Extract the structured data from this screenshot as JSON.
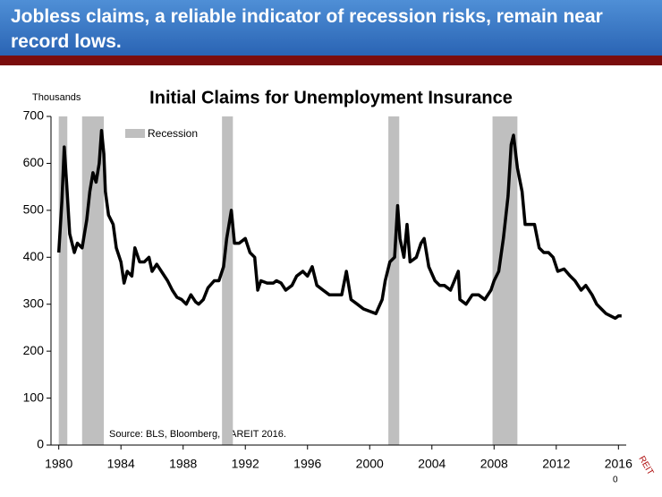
{
  "header": {
    "title": "Jobless claims, a reliable indicator of recession risks, remain near record lows."
  },
  "chart_data": {
    "type": "line",
    "title": "Initial Claims for Unemployment Insurance",
    "y_label": "Thousands",
    "source": "Source: BLS, Bloomberg, NAREIT 2016.",
    "color": "#000000",
    "x": [
      1980.0,
      1980.2,
      1980.35,
      1980.5,
      1980.7,
      1981.0,
      1981.2,
      1981.5,
      1981.8,
      1982.0,
      1982.2,
      1982.4,
      1982.6,
      1982.75,
      1982.9,
      1983.0,
      1983.2,
      1983.5,
      1983.7,
      1984.0,
      1984.2,
      1984.4,
      1984.7,
      1984.9,
      1985.2,
      1985.5,
      1985.8,
      1986.0,
      1986.3,
      1986.6,
      1987.0,
      1987.3,
      1987.6,
      1987.9,
      1988.2,
      1988.5,
      1988.8,
      1989.0,
      1989.3,
      1989.6,
      1990.0,
      1990.3,
      1990.6,
      1990.8,
      1991.0,
      1991.1,
      1991.3,
      1991.6,
      1992.0,
      1992.3,
      1992.6,
      1992.8,
      1993.0,
      1993.4,
      1993.8,
      1994.0,
      1994.3,
      1994.6,
      1995.0,
      1995.3,
      1995.7,
      1996.0,
      1996.3,
      1996.6,
      1997.0,
      1997.4,
      1997.8,
      1998.2,
      1998.5,
      1998.8,
      1999.2,
      1999.6,
      2000.0,
      2000.4,
      2000.8,
      2001.0,
      2001.3,
      2001.6,
      2001.8,
      2001.95,
      2002.2,
      2002.4,
      2002.6,
      2003.0,
      2003.3,
      2003.5,
      2003.8,
      2004.2,
      2004.5,
      2004.8,
      2005.2,
      2005.7,
      2005.8,
      2006.2,
      2006.6,
      2007.0,
      2007.4,
      2007.8,
      2008.0,
      2008.3,
      2008.6,
      2008.9,
      2009.1,
      2009.25,
      2009.5,
      2009.8,
      2010.0,
      2010.3,
      2010.6,
      2010.9,
      2011.2,
      2011.5,
      2011.8,
      2012.1,
      2012.5,
      2012.9,
      2013.2,
      2013.6,
      2013.9,
      2014.3,
      2014.6,
      2014.9,
      2015.2,
      2015.5,
      2015.8,
      2016.0,
      2016.2
    ],
    "values": [
      410,
      520,
      635,
      560,
      450,
      410,
      430,
      420,
      480,
      540,
      580,
      560,
      600,
      670,
      620,
      540,
      490,
      470,
      420,
      390,
      345,
      370,
      360,
      420,
      390,
      390,
      400,
      370,
      385,
      370,
      350,
      330,
      315,
      310,
      300,
      320,
      305,
      300,
      310,
      335,
      350,
      350,
      380,
      440,
      480,
      500,
      430,
      430,
      440,
      410,
      400,
      330,
      350,
      345,
      345,
      350,
      345,
      330,
      340,
      360,
      370,
      360,
      380,
      340,
      330,
      320,
      320,
      320,
      370,
      310,
      300,
      290,
      285,
      280,
      310,
      350,
      390,
      400,
      510,
      440,
      400,
      470,
      390,
      400,
      430,
      440,
      380,
      350,
      340,
      340,
      330,
      370,
      310,
      300,
      320,
      320,
      310,
      330,
      350,
      370,
      440,
      530,
      640,
      660,
      590,
      540,
      470,
      470,
      470,
      420,
      410,
      410,
      400,
      370,
      375,
      360,
      350,
      330,
      340,
      320,
      300,
      290,
      280,
      275,
      270,
      275,
      275
    ],
    "xlim": [
      1979.5,
      2016.5
    ],
    "xticks": [
      1980,
      1984,
      1988,
      1992,
      1996,
      2000,
      2004,
      2008,
      2012,
      2016
    ],
    "ylim": [
      0,
      700
    ],
    "yticks": [
      0,
      100,
      200,
      300,
      400,
      500,
      600,
      700
    ],
    "recessions": {
      "name": "Recession",
      "color": "#bfbfbf",
      "ranges": [
        [
          1980.0,
          1980.55
        ],
        [
          1981.5,
          1982.9
        ],
        [
          1990.5,
          1991.2
        ],
        [
          2001.2,
          2001.9
        ],
        [
          2007.9,
          2009.5
        ]
      ]
    }
  },
  "footer": {
    "page_number": "0",
    "logo": "REIT"
  }
}
